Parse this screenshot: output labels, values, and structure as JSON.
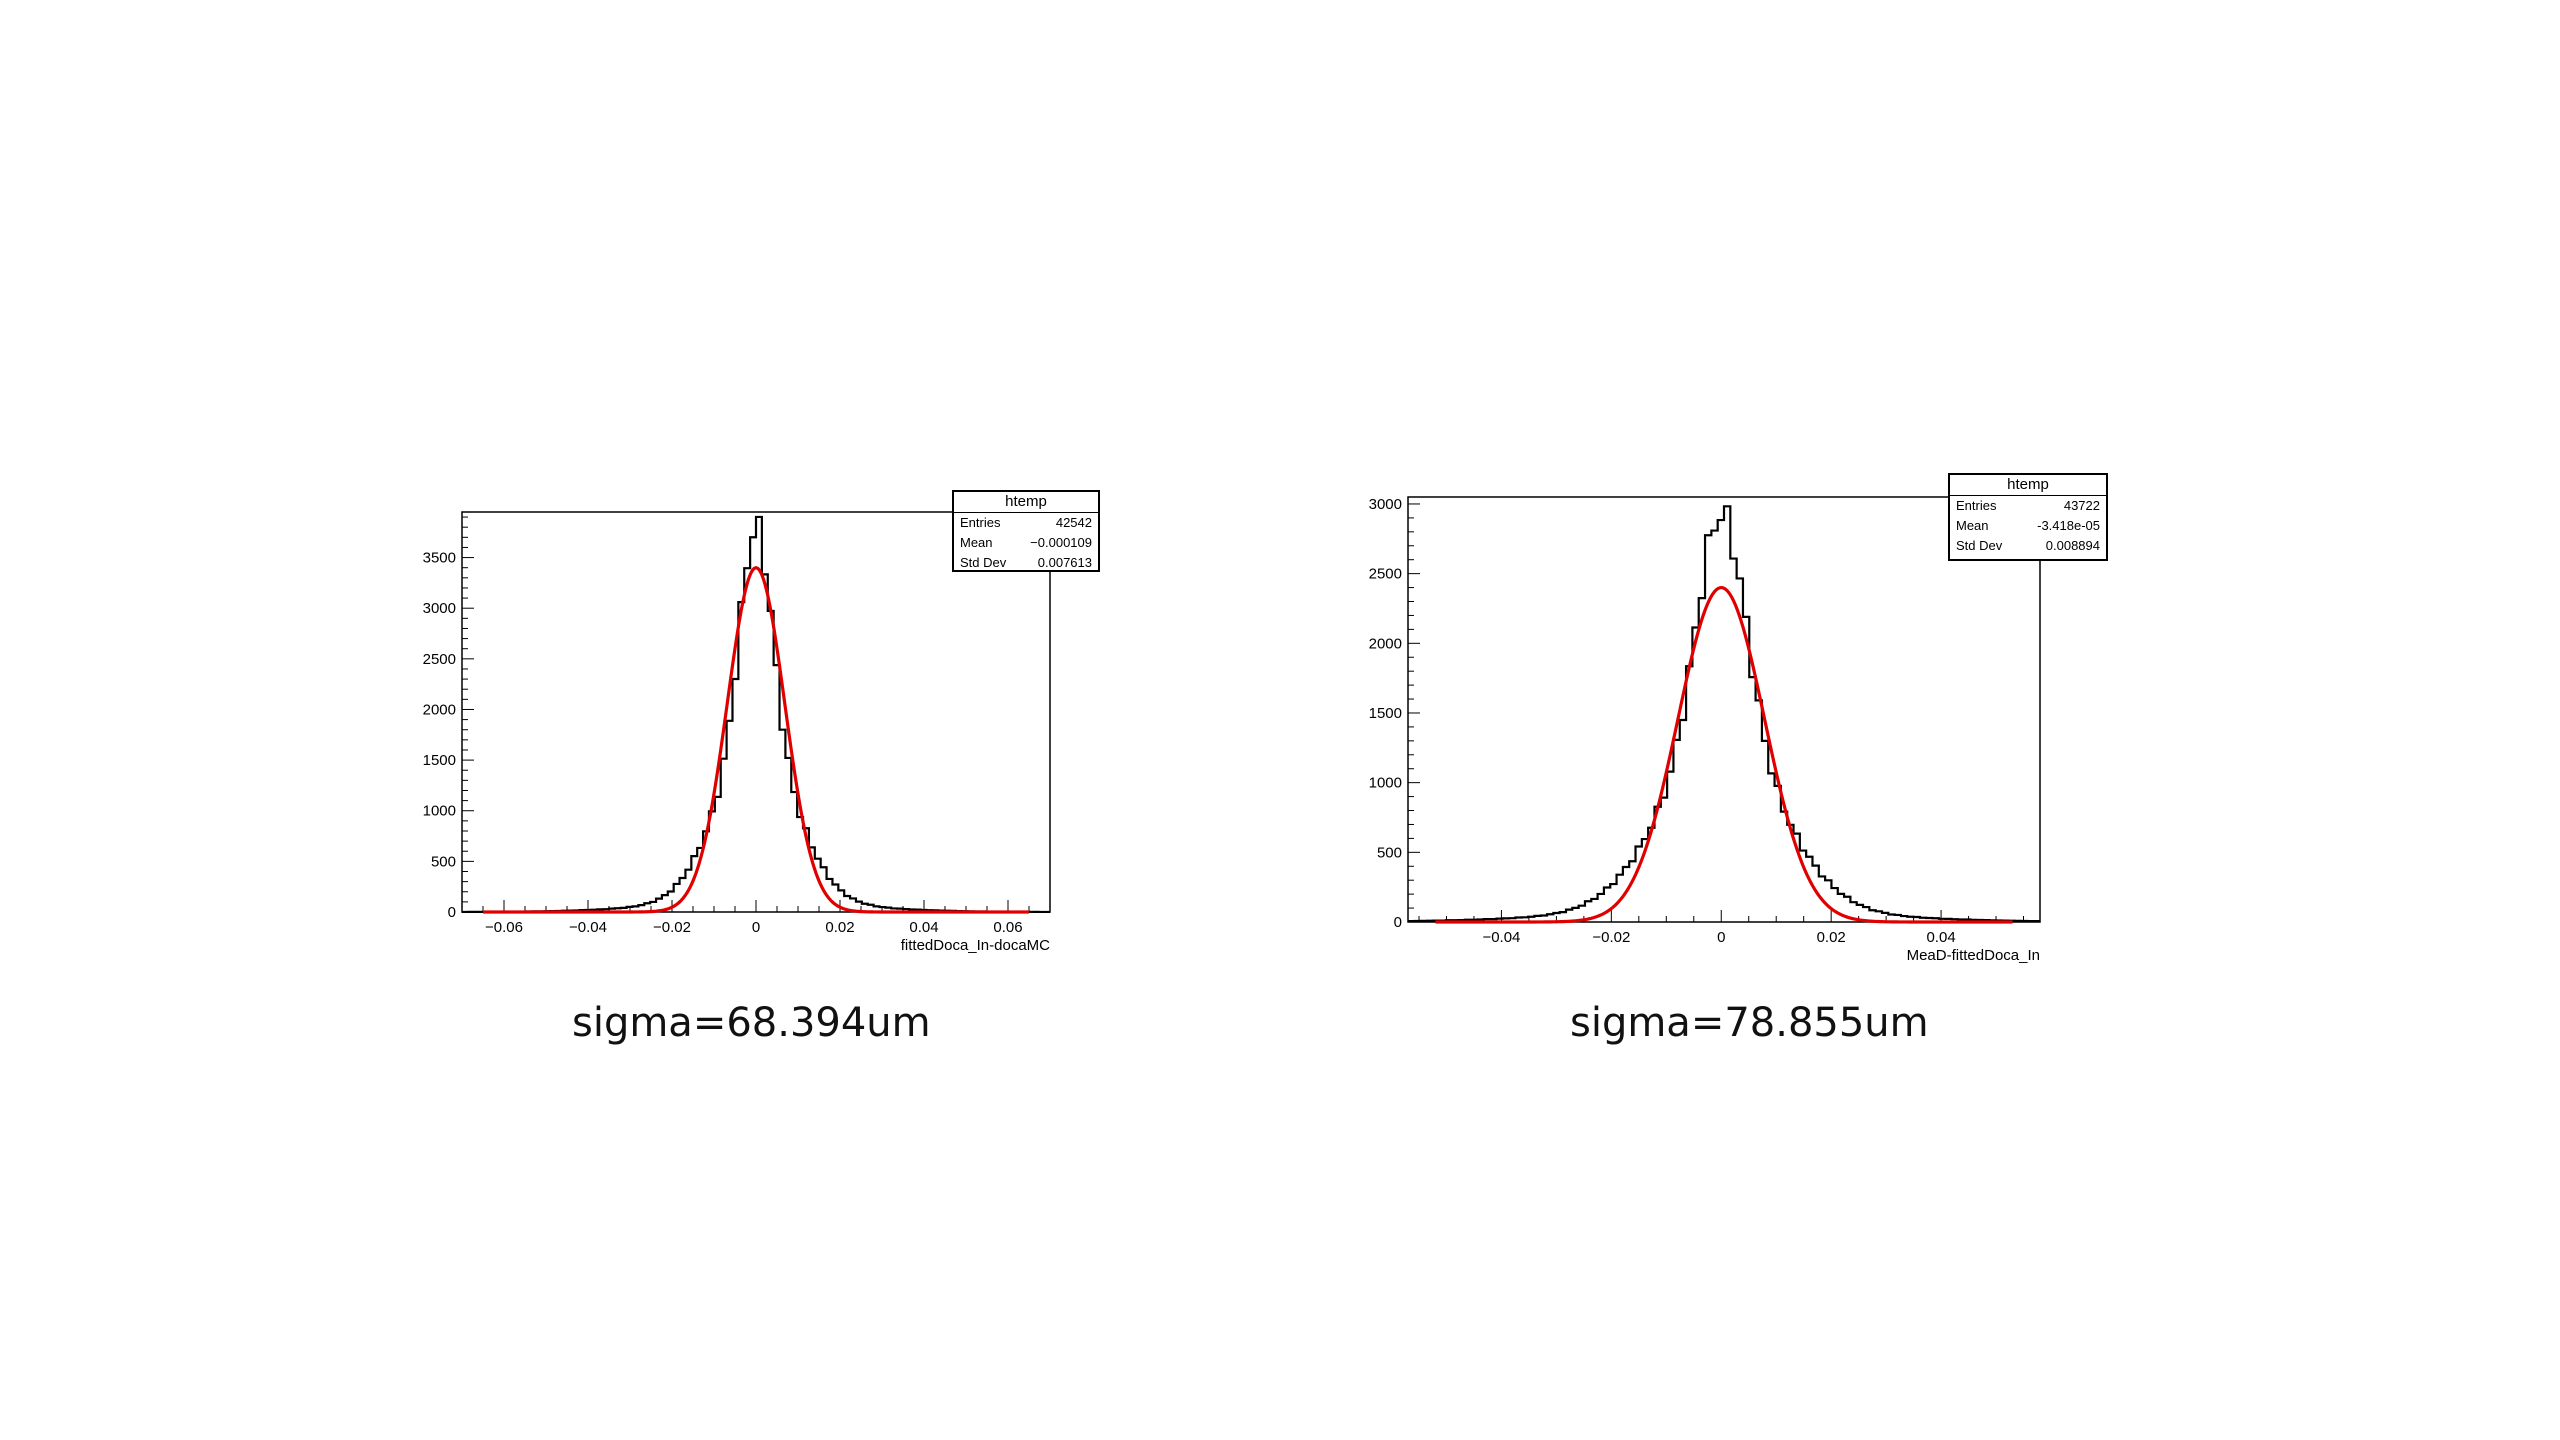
{
  "chart_data": [
    {
      "type": "histogram",
      "stats_box": {
        "title": "htemp",
        "rows": [
          {
            "label": "Entries",
            "value": "42542"
          },
          {
            "label": "Mean",
            "value": "−0.000109"
          },
          {
            "label": "Std Dev",
            "value": "0.007613"
          }
        ]
      },
      "xlabel": "fittedDoca_In-docaMC",
      "xlim": [
        -0.07,
        0.07
      ],
      "ylim": [
        0,
        3950
      ],
      "xticks": [
        -0.06,
        -0.04,
        -0.02,
        0,
        0.02,
        0.04,
        0.06
      ],
      "xtick_labels": [
        "−0.06",
        "−0.04",
        "−0.02",
        "0",
        "0.02",
        "0.04",
        "0.06"
      ],
      "yticks": [
        0,
        500,
        1000,
        1500,
        2000,
        2500,
        3000,
        3500
      ],
      "ytick_labels": [
        "0",
        "500",
        "1000",
        "1500",
        "2000",
        "2500",
        "3000",
        "3500"
      ],
      "bin_width": 0.0014,
      "peak_counts": 3800,
      "fit": {
        "color": "#e00000",
        "amplitude": 3400,
        "mean": 0,
        "sigma": 0.0068394
      },
      "caption": "sigma=68.394um"
    },
    {
      "type": "histogram",
      "stats_box": {
        "title": "htemp",
        "rows": [
          {
            "label": "Entries",
            "value": "43722"
          },
          {
            "label": "Mean",
            "value": "-3.418e-05"
          },
          {
            "label": "Std Dev",
            "value": "0.008894"
          }
        ]
      },
      "xlabel": "MeaD-fittedDoca_In",
      "xlim": [
        -0.057,
        0.058
      ],
      "ylim": [
        0,
        3050
      ],
      "xticks": [
        -0.04,
        -0.02,
        0,
        0.02,
        0.04
      ],
      "xtick_labels": [
        "−0.04",
        "−0.02",
        "0",
        "0.02",
        "0.04"
      ],
      "yticks": [
        0,
        500,
        1000,
        1500,
        2000,
        2500,
        3000
      ],
      "ytick_labels": [
        "0",
        "500",
        "1000",
        "1500",
        "2000",
        "2500",
        "3000"
      ],
      "bin_width": 0.00115,
      "peak_counts": 2930,
      "fit": {
        "color": "#e00000",
        "amplitude": 2400,
        "mean": 0,
        "sigma": 0.0078855
      },
      "caption": "sigma=78.855um"
    }
  ]
}
